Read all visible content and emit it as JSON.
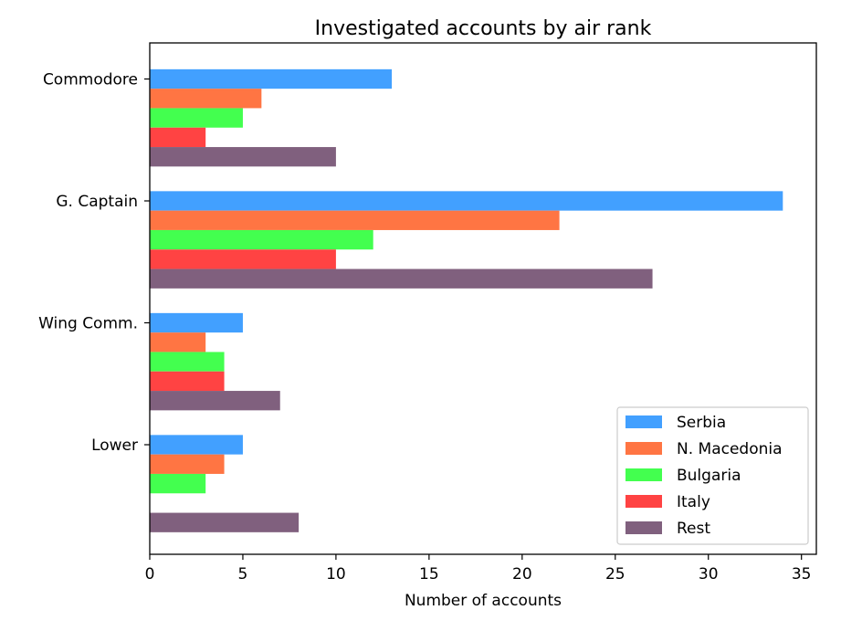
{
  "chart_data": {
    "type": "bar",
    "orientation": "horizontal",
    "title": "Investigated accounts by air rank",
    "xlabel": "Number of accounts",
    "ylabel": "",
    "xlim": [
      0,
      35.8
    ],
    "xticks": [
      0,
      5,
      10,
      15,
      20,
      25,
      30,
      35
    ],
    "categories": [
      "Commodore",
      "G. Captain",
      "Wing Comm.",
      "Lower"
    ],
    "series": [
      {
        "name": "Serbia",
        "color": "#42a0ff",
        "values": [
          13,
          34,
          5,
          5
        ]
      },
      {
        "name": "N. Macedonia",
        "color": "#ff7543",
        "values": [
          6,
          22,
          3,
          4
        ]
      },
      {
        "name": "Bulgaria",
        "color": "#43ff4f",
        "values": [
          5,
          12,
          4,
          3
        ]
      },
      {
        "name": "Italy",
        "color": "#ff4343",
        "values": [
          3,
          10,
          4,
          0
        ]
      },
      {
        "name": "Rest",
        "color": "#80607e",
        "values": [
          10,
          27,
          7,
          8
        ]
      }
    ],
    "legend_position": "lower-right",
    "grid": false
  }
}
